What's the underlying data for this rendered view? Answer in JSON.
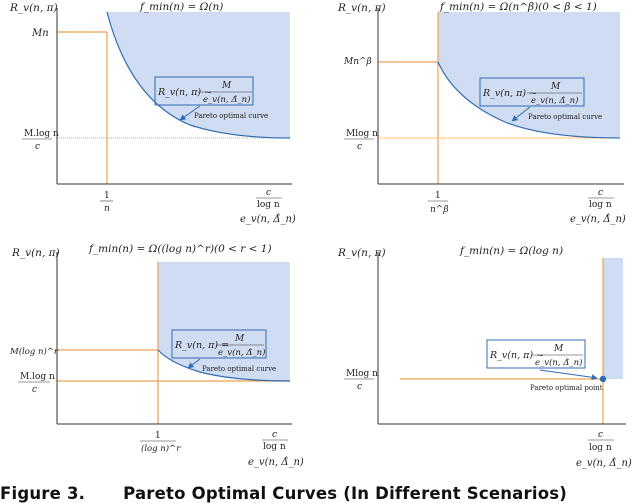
{
  "caption": {
    "label": "Figure 3.",
    "text": "Pareto Optimal Curves (In Different Scenarios)"
  },
  "colors": {
    "region": "#cfdcf1",
    "curve": "#2f6db5",
    "threshold": "#f0a050",
    "axis": "#333333",
    "box": "#2f6db5"
  },
  "panels": [
    {
      "id": "a",
      "y_label": "R_v(n, π)",
      "title": "f_min(n) = Ω(n)",
      "y_tick_top": "Mn",
      "y_tick_bottom_num": "M.log n",
      "y_tick_bottom_den": "c",
      "x_tick_num": "1",
      "x_tick_den": "n",
      "x_end_num": "c",
      "x_end_den": "log n",
      "x_label": "e_v(n, Δ̂_n)",
      "formula_lhs": "R_v(n, π) ~",
      "formula_num": "M",
      "formula_den": "e_v(n, Δ̂_n)",
      "annotation": "Pareto optimal curve"
    },
    {
      "id": "b",
      "y_label": "R_v(n, π)",
      "title": "f_min(n) = Ω(n^β)(0 < β < 1)",
      "y_tick_top": "Mn^β",
      "y_tick_bottom_num": "Mlog n",
      "y_tick_bottom_den": "c",
      "x_tick_num": "1",
      "x_tick_den": "n^β",
      "x_end_num": "c",
      "x_end_den": "log n",
      "x_label": "e_v(n, Δ̂_n)",
      "formula_lhs": "R_v(n, π) ~",
      "formula_num": "M",
      "formula_den": "e_v(n, Δ̂_n)",
      "annotation": "Pareto optimal curve"
    },
    {
      "id": "c",
      "y_label": "R_v(n, π)",
      "title": "f_min(n) = Ω((log n)^r)(0 < r < 1)",
      "y_tick_top": "M(log n)^r",
      "y_tick_bottom_num": "M.log n",
      "y_tick_bottom_den": "c",
      "x_tick_num": "1",
      "x_tick_den": "(log n)^r",
      "x_end_num": "c",
      "x_end_den": "log n",
      "x_label": "e_v(n, Δ̂_n)",
      "formula_lhs": "R_v(n, π) =",
      "formula_num": "M",
      "formula_den": "e_v(n, Δ̂_n)",
      "annotation": "Pareto optimal curve"
    },
    {
      "id": "d",
      "y_label": "R_v(n, π)",
      "title": "f_min(n) = Ω(log n)",
      "y_tick_bottom_num": "Mlog n",
      "y_tick_bottom_den": "c",
      "x_end_num": "c",
      "x_end_den": "log n",
      "x_label": "e_v(n, Δ̂_n)",
      "formula_lhs": "R_v(n, π) ~",
      "formula_num": "M",
      "formula_den": "e_v(n, Δ̂_n)",
      "annotation": "Pareto optimal point"
    }
  ]
}
